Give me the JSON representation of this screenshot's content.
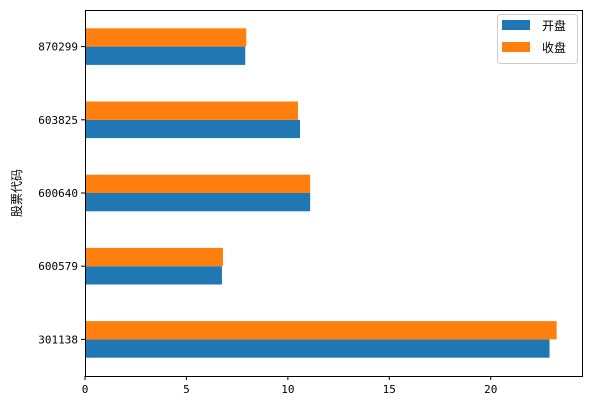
{
  "chart_data": {
    "type": "bar",
    "orientation": "horizontal",
    "title": "",
    "xlabel": "",
    "ylabel": "股票代码",
    "categories": [
      "301138",
      "600579",
      "600640",
      "603825",
      "870299"
    ],
    "series": [
      {
        "name": "开盘",
        "color": "#1f77b4",
        "values": [
          22.9,
          6.75,
          11.1,
          10.6,
          7.9
        ]
      },
      {
        "name": "收盘",
        "color": "#ff7f0e",
        "values": [
          23.25,
          6.8,
          11.1,
          10.5,
          7.95
        ]
      }
    ],
    "xlim": [
      0,
      24.5
    ],
    "xticks": [
      0,
      5,
      10,
      15,
      20
    ],
    "grid": false,
    "legend_position": "top-right"
  }
}
